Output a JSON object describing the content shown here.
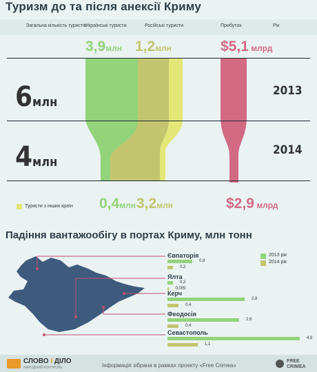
{
  "title": "Туризм до та після анексії Криму",
  "headers": {
    "total": "Загальна кількість туристів",
    "ukr": "Українські туристи",
    "rus": "Російські туристи",
    "profit": "Прибуток",
    "year": "Рік"
  },
  "top_values": {
    "ukr": "3,9",
    "rus": "1,2",
    "profit_num": "$5,1",
    "profit_unit": "млрд",
    "unit": "млн"
  },
  "bottom_values": {
    "ukr": "0,4",
    "rus": "3,2",
    "profit_num": "$2,9",
    "profit_unit": "млрд",
    "unit": "млн"
  },
  "rows": [
    {
      "total_num": "6",
      "unit": "млн",
      "year": "2013"
    },
    {
      "total_num": "4",
      "unit": "млн",
      "year": "2014"
    }
  ],
  "legend_other": "Туристи з інших країн",
  "colors": {
    "ukr": "#93d37a",
    "rus": "#c2c56e",
    "other": "#e2e777",
    "profit": "#d26a84",
    "dark": "#1d2b33",
    "map": "#3e5b7e"
  },
  "chart_data": {
    "title": "Падіння вантажообігу в портах Криму, млн тонн",
    "type": "bar",
    "categories": [
      "Євпаторія",
      "Ялта",
      "Керч",
      "Феодосія",
      "Севастополь"
    ],
    "series": [
      {
        "name": "2013 рік",
        "values": [
          0.9,
          0.2,
          2.8,
          2.6,
          4.8
        ],
        "labels": [
          "0,9",
          "0,2",
          "2,8",
          "2,6",
          "4,8"
        ]
      },
      {
        "name": "2014 рік",
        "values": [
          0.2,
          0.005,
          0.4,
          0.4,
          1.1
        ],
        "labels": [
          "0,2",
          "0,005",
          "0,4",
          "0,4",
          "1,1"
        ]
      }
    ],
    "legend_position": "top-right"
  },
  "footer": {
    "logo1": "СЛОВО",
    "logo_sep": "І",
    "logo2": "ДІЛО",
    "logo_sub": "НАРОДНИЙ КОНТРОЛЬ",
    "info": "Інформація зібрана в рамках проекту «Free Crimea»",
    "fc1": "FREE",
    "fc2": "CRIMEA"
  }
}
